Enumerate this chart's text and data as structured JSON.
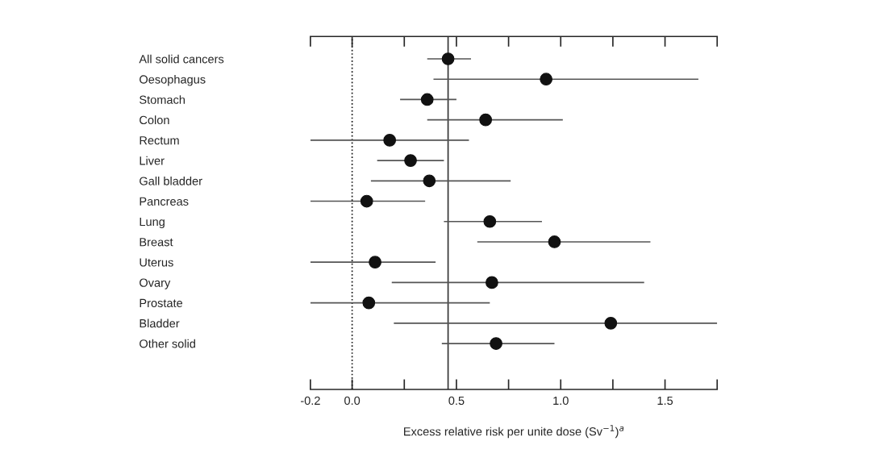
{
  "chart_data": {
    "type": "scatter",
    "orientation": "horizontal",
    "xlabel": "Excess relative risk per unite dose (Sv$^{−1}$)$^{a}$",
    "categories": [
      "All solid cancers",
      "Oesophagus",
      "Stomach",
      "Colon",
      "Rectum",
      "Liver",
      "Gall bladder",
      "Pancreas",
      "Lung",
      "Breast",
      "Uterus",
      "Ovary",
      "Prostate",
      "Bladder",
      "Other solid"
    ],
    "values": [
      0.46,
      0.93,
      0.36,
      0.64,
      0.18,
      0.28,
      0.37,
      0.07,
      0.66,
      0.97,
      0.11,
      0.67,
      0.08,
      1.24,
      0.69
    ],
    "errors": [
      [
        0.36,
        0.57
      ],
      [
        0.39,
        1.66
      ],
      [
        0.23,
        0.5
      ],
      [
        0.36,
        1.01
      ],
      [
        -0.2,
        0.56
      ],
      [
        0.12,
        0.44
      ],
      [
        0.09,
        0.76
      ],
      [
        -0.2,
        0.35
      ],
      [
        0.44,
        0.91
      ],
      [
        0.6,
        1.43
      ],
      [
        -0.2,
        0.4
      ],
      [
        0.19,
        1.4
      ],
      [
        -0.2,
        0.66
      ],
      [
        0.2,
        1.75
      ],
      [
        0.43,
        0.97
      ]
    ],
    "color": "#111111",
    "marker": "circle",
    "grid": false,
    "xlim": [
      -0.2,
      1.75
    ],
    "xticks": [
      -0.2,
      {
        "value": 0,
        "label": "0.0"
      },
      {
        "value": 0.25,
        "label": null
      },
      0.5,
      {
        "value": 0.75,
        "label": null
      },
      {
        "value": 1,
        "label": "1.0"
      },
      {
        "value": 1.25,
        "label": null
      },
      1.5,
      {
        "value": 1.75,
        "label": null
      }
    ],
    "ref_lines": [
      {
        "axis": "x",
        "value": 0,
        "line_style": "dotted",
        "color": "#111111"
      },
      {
        "axis": "x",
        "value": 0.46,
        "line_style": "solid",
        "color": "#333333"
      }
    ]
  }
}
